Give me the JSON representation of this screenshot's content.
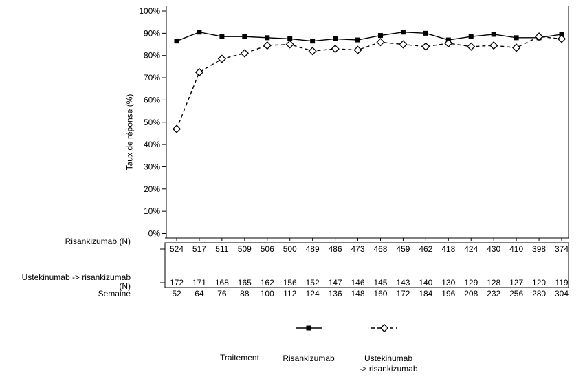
{
  "chart_data": {
    "type": "line",
    "title": "",
    "ylabel": "Taux de réponse (%)",
    "xlabel": "Semaine",
    "ylim": [
      0,
      100
    ],
    "grid": false,
    "legend_position": "bottom",
    "ytick_values": [
      0,
      10,
      20,
      30,
      40,
      50,
      60,
      70,
      80,
      90,
      100
    ],
    "ytick_labels": [
      "0%",
      "10%",
      "20%",
      "30%",
      "40%",
      "50%",
      "60%",
      "70%",
      "80%",
      "90%",
      "100%"
    ],
    "x": [
      52,
      64,
      76,
      88,
      100,
      112,
      124,
      136,
      148,
      160,
      172,
      184,
      196,
      208,
      232,
      256,
      280,
      304
    ],
    "series": [
      {
        "name": "Risankizumab",
        "marker": "filled-square",
        "line": "solid",
        "values": [
          86.5,
          90.5,
          88.5,
          88.5,
          88,
          87.5,
          86.5,
          87.5,
          87,
          89,
          90.5,
          90,
          87,
          88.5,
          89.5,
          88,
          88,
          89.5
        ]
      },
      {
        "name": "Ustekinumab -> risankizumab",
        "marker": "open-diamond",
        "line": "dashed",
        "values": [
          47,
          72.5,
          78.5,
          81,
          84.5,
          85,
          82,
          83,
          82.5,
          86,
          85,
          84,
          85.5,
          84,
          84.5,
          83.5,
          88.5,
          87.5
        ]
      }
    ]
  },
  "table": {
    "row1_label": "Risankizumab (N)",
    "row1_values": [
      524,
      517,
      511,
      509,
      506,
      500,
      489,
      486,
      473,
      468,
      459,
      462,
      418,
      424,
      430,
      410,
      398,
      374
    ],
    "row2_label_line1": "Ustekinumab -> risankizumab",
    "row2_label_line2": "(N)",
    "row2_values": [
      172,
      171,
      168,
      165,
      162,
      156,
      152,
      147,
      146,
      145,
      143,
      140,
      130,
      129,
      128,
      127,
      120,
      119
    ],
    "x_label": "Semaine"
  },
  "legend": {
    "title": "Traitement",
    "items": [
      {
        "label_lines": [
          "Risankizumab"
        ]
      },
      {
        "label_lines": [
          "Ustekinumab",
          "-> risankizumab"
        ]
      }
    ]
  },
  "colors": {
    "background": "#ffffff",
    "text": "#000000",
    "risankizumab_line": "#000000",
    "ustekinumab_line": "#000000",
    "diamond_fill": "#ffffff"
  }
}
